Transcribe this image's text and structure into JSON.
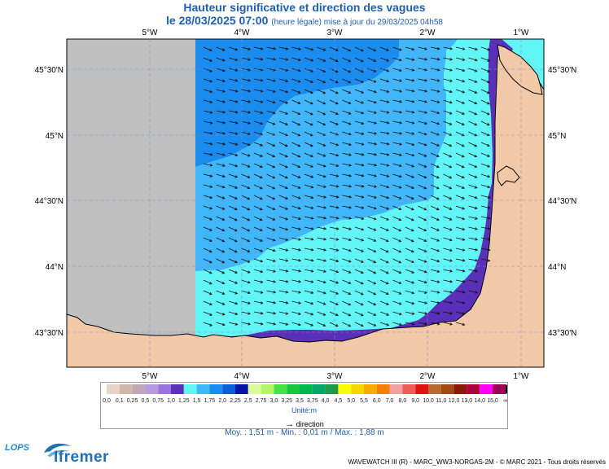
{
  "header": {
    "title": "Hauteur significative et direction des vagues",
    "date_main": "le 28/03/2025 07:00",
    "date_note": "(heure légale) mise à jour du 29/03/2025 04h58"
  },
  "map": {
    "lon_ticks": [
      "5°W",
      "4°W",
      "3°W",
      "2°W",
      "1°W"
    ],
    "lat_ticks": [
      "45°30'N",
      "45°N",
      "44°30'N",
      "44°N",
      "43°30'N"
    ],
    "colors": {
      "no_data": "#c0c0c0",
      "band_1_25": "#5a30b8",
      "band_1_5": "#62f5f5",
      "band_1_75": "#41b6fa",
      "band_2_0": "#1a8cf0",
      "land": "#f2c9a8"
    },
    "arrow_direction": "east-southeast"
  },
  "legend": {
    "values": [
      "0,0",
      "0,1",
      "0,25",
      "0,5",
      "0,75",
      "1,0",
      "1,25",
      "1,5",
      "1,75",
      "2,0",
      "2,25",
      "2,5",
      "2,75",
      "3,0",
      "3,25",
      "3,5",
      "3,75",
      "4,0",
      "4,5",
      "5,0",
      "5,5",
      "6,0",
      "7,0",
      "8,0",
      "9,0",
      "10,0",
      "11,0",
      "12,0",
      "13,0",
      "14,0",
      "15,0",
      "∞"
    ],
    "colors": [
      "#e7d3c6",
      "#d1b7ab",
      "#c0a6b7",
      "#b79ae0",
      "#9a73e2",
      "#5a30b8",
      "#62f5f5",
      "#41b6fa",
      "#1a8cf0",
      "#0a5fd8",
      "#0713a6",
      "#dcfa9a",
      "#b4f56a",
      "#4ae04a",
      "#16c83e",
      "#00b850",
      "#03a868",
      "#1e9a4a",
      "#fafa00",
      "#f5d800",
      "#f7ad00",
      "#f58000",
      "#f5a0a0",
      "#f05a5a",
      "#e01212",
      "#b86b2e",
      "#a04a14",
      "#8a1a08",
      "#b00040",
      "#ff00ff",
      "#a0005a"
    ],
    "unit": "Unité:m"
  },
  "footer": {
    "direction_label": "direction",
    "stats": "Moy. : 1,51 m   -   Min. : 0,01 m / Max. : 1,88 m",
    "credit": "WAVEWATCH III (R) - MARC_WW3-NORGAS-2M - © MARC 2021 - Tous droits réservés",
    "logo_lops": "LOPS",
    "logo_ifremer": "Ifremer"
  }
}
